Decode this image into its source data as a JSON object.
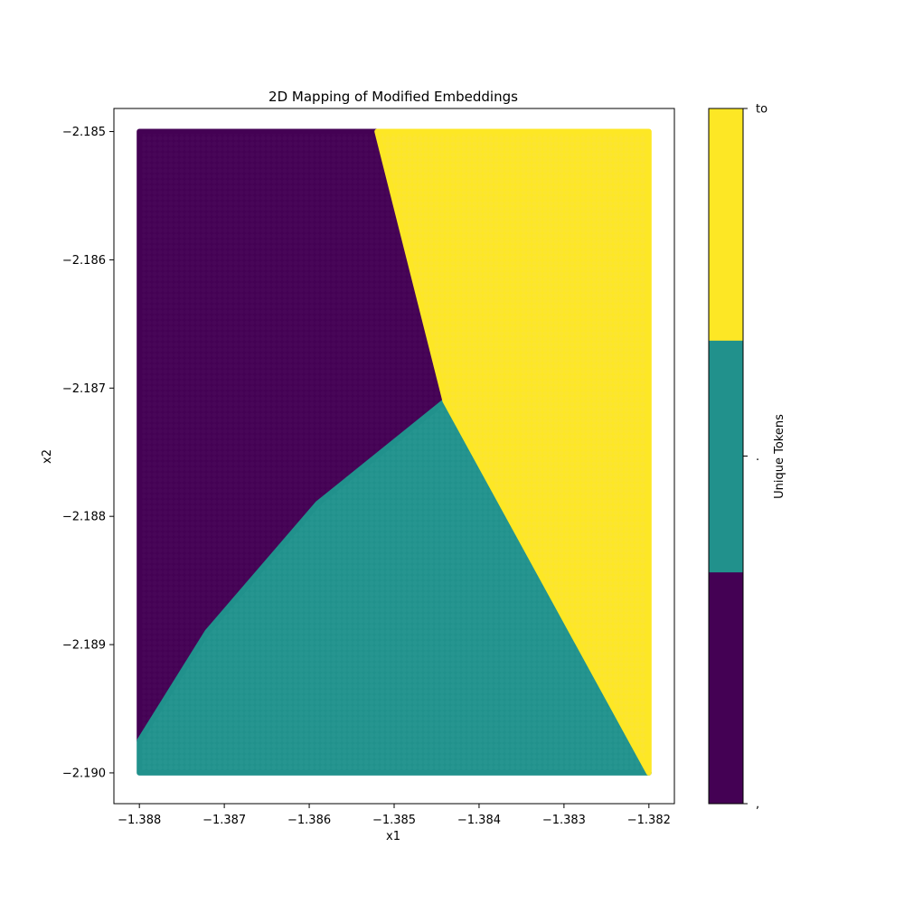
{
  "chart_data": {
    "type": "scatter",
    "title": "2D Mapping of Modified Embeddings",
    "xlabel": "x1",
    "ylabel": "x2",
    "xlim": [
      -1.3883,
      -1.3817
    ],
    "ylim": [
      -2.19024,
      -2.18482
    ],
    "x_range": [
      -1.388,
      -1.382
    ],
    "y_range": [
      -2.19,
      -2.185
    ],
    "grid": false,
    "x_ticks": [
      -1.388,
      -1.387,
      -1.386,
      -1.385,
      -1.384,
      -1.383,
      -1.382
    ],
    "x_tick_labels": [
      "−1.388",
      "−1.387",
      "−1.386",
      "−1.385",
      "−1.384",
      "−1.383",
      "−1.382"
    ],
    "y_ticks": [
      -2.185,
      -2.186,
      -2.187,
      -2.188,
      -2.189,
      -2.19
    ],
    "y_tick_labels": [
      "−2.185",
      "−2.186",
      "−2.187",
      "−2.188",
      "−2.189",
      "−2.190"
    ],
    "regions": [
      {
        "label": ",",
        "color": "#440154",
        "boundary": [
          [
            -1.388,
            -2.185
          ],
          [
            -1.3852,
            -2.185
          ],
          [
            -1.3844,
            -2.1871
          ],
          [
            -1.3859,
            -2.1879
          ],
          [
            -1.3872,
            -2.1889
          ],
          [
            -1.388,
            -2.18975
          ]
        ]
      },
      {
        "label": ".",
        "color": "#21918c",
        "boundary": [
          [
            -1.388,
            -2.19
          ],
          [
            -1.382,
            -2.19
          ],
          [
            -1.3844,
            -2.1871
          ],
          [
            -1.3859,
            -2.1879
          ],
          [
            -1.3872,
            -2.1889
          ],
          [
            -1.388,
            -2.18975
          ]
        ]
      },
      {
        "label": "to",
        "color": "#fde725",
        "boundary": [
          [
            -1.3852,
            -2.185
          ],
          [
            -1.382,
            -2.185
          ],
          [
            -1.382,
            -2.19
          ],
          [
            -1.3844,
            -2.1871
          ]
        ]
      }
    ],
    "colorbar": {
      "label": "Unique Tokens",
      "ticks": [
        ",",
        ".",
        "to"
      ],
      "colors": [
        "#440154",
        "#21918c",
        "#fde725"
      ]
    }
  }
}
